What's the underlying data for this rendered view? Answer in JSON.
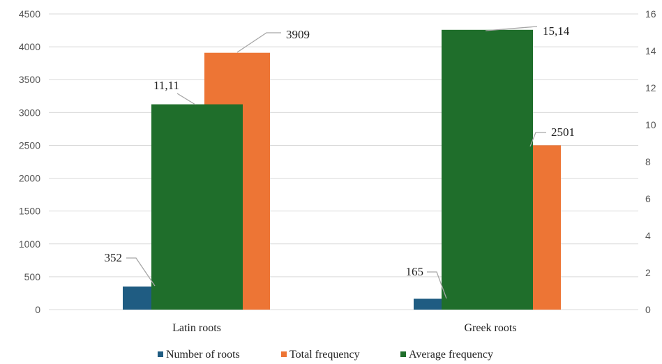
{
  "chart_data": {
    "type": "bar",
    "categories": [
      "Latin roots",
      "Greek roots"
    ],
    "series": [
      {
        "name": "Number of roots",
        "axis": "primary",
        "values": [
          352,
          165
        ],
        "labels": [
          "352",
          "165"
        ],
        "color": "#1f5c82"
      },
      {
        "name": "Total frequency",
        "axis": "primary",
        "values": [
          3909,
          2501
        ],
        "labels": [
          "3909",
          "2501"
        ],
        "color": "#ed7535"
      },
      {
        "name": "Average frequency",
        "axis": "secondary",
        "values": [
          11.11,
          15.14
        ],
        "labels": [
          "11,11",
          "15,14"
        ],
        "color": "#1f6e2b"
      }
    ],
    "y_left": {
      "min": 0,
      "max": 4500,
      "step": 500,
      "ticks": [
        "0",
        "500",
        "1000",
        "1500",
        "2000",
        "2500",
        "3000",
        "3500",
        "4000",
        "4500"
      ]
    },
    "y_right": {
      "min": 0,
      "max": 16,
      "step": 2,
      "ticks": [
        "0",
        "2",
        "4",
        "6",
        "8",
        "10",
        "12",
        "14",
        "16"
      ]
    },
    "grid": true,
    "legend": "bottom",
    "title": "",
    "xlabel": "",
    "ylabel": ""
  }
}
